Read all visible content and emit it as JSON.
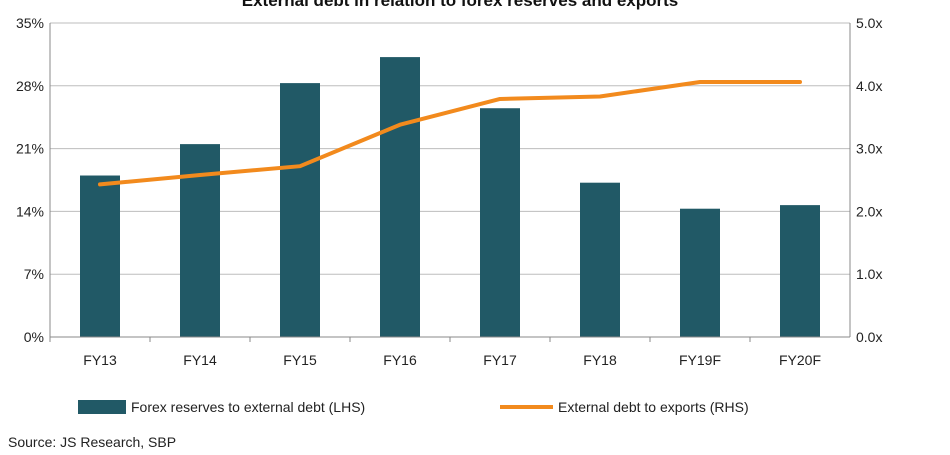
{
  "chart_data": {
    "type": "bar",
    "title": "External debt in relation to forex reserves and exports",
    "categories": [
      "FY13",
      "FY14",
      "FY15",
      "FY16",
      "FY17",
      "FY18",
      "FY19F",
      "FY20F"
    ],
    "left_axis": {
      "ticks": [
        "0%",
        "7%",
        "14%",
        "21%",
        "28%",
        "35%"
      ],
      "ylim": [
        0,
        35
      ]
    },
    "right_axis": {
      "ticks": [
        "0.0x",
        "1.0x",
        "2.0x",
        "3.0x",
        "4.0x",
        "5.0x"
      ],
      "ylim": [
        0,
        5
      ]
    },
    "series": [
      {
        "name": "Forex reserves to external debt (LHS)",
        "type": "bar",
        "axis": "left",
        "color": "#215966",
        "values": [
          18,
          21.5,
          28.3,
          31.2,
          25.5,
          17.2,
          14.3,
          14.7
        ]
      },
      {
        "name": "External debt to exports (RHS)",
        "type": "line",
        "axis": "right",
        "color": "#F28A1D",
        "values": [
          2.43,
          2.58,
          2.72,
          3.38,
          3.79,
          3.83,
          4.06,
          4.06
        ]
      }
    ],
    "grid": true,
    "legend_position": "bottom"
  },
  "source_text": "Source: JS Research, SBP"
}
